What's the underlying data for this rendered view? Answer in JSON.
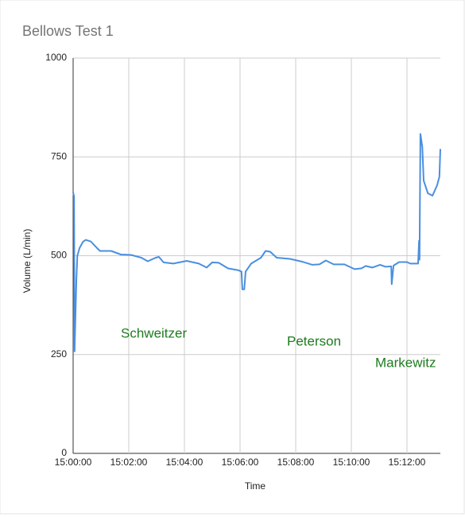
{
  "chart_data": {
    "type": "line",
    "title": "Bellows Test 1",
    "x_label": "Time",
    "y_label": "Volume (L/min)",
    "xlim": [
      "15:00:00",
      "15:13:12"
    ],
    "xticks": [
      "15:00:00",
      "15:02:00",
      "15:04:00",
      "15:06:00",
      "15:08:00",
      "15:10:00",
      "15:12:00"
    ],
    "ylim": [
      0,
      1000
    ],
    "yticks": [
      0,
      250,
      500,
      750,
      1000
    ],
    "grid": true,
    "annotations": [
      "Schweitzer",
      "Peterson",
      "Markewitz"
    ],
    "x": [
      "15:00:00",
      "15:00:02",
      "15:00:03",
      "15:00:07",
      "15:00:09",
      "15:00:14",
      "15:00:21",
      "15:00:27",
      "15:00:38",
      "15:00:51",
      "15:00:58",
      "15:01:22",
      "15:01:43",
      "15:02:05",
      "15:02:27",
      "15:02:41",
      "15:02:58",
      "15:03:05",
      "15:03:15",
      "15:03:36",
      "15:04:05",
      "15:04:31",
      "15:04:48",
      "15:05:00",
      "15:05:14",
      "15:05:34",
      "15:05:57",
      "15:06:03",
      "15:06:05",
      "15:06:09",
      "15:06:12",
      "15:06:24",
      "15:06:45",
      "15:06:55",
      "15:07:05",
      "15:07:19",
      "15:07:48",
      "15:08:14",
      "15:08:36",
      "15:08:51",
      "15:09:05",
      "15:09:22",
      "15:09:45",
      "15:10:07",
      "15:10:22",
      "15:10:31",
      "15:10:45",
      "15:11:02",
      "15:11:14",
      "15:11:26",
      "15:11:27",
      "15:11:31",
      "15:11:43",
      "15:12:00",
      "15:12:07",
      "15:12:24",
      "15:12:26",
      "15:12:27",
      "15:12:29",
      "15:12:33",
      "15:12:36",
      "15:12:45",
      "15:12:55",
      "15:13:05",
      "15:13:10",
      "15:13:12"
    ],
    "series": [
      {
        "name": "Volume",
        "color": "#4a8fe0",
        "values": [
          660,
          650,
          258,
          440,
          500,
          520,
          535,
          540,
          536,
          520,
          512,
          512,
          503,
          502,
          495,
          486,
          495,
          497,
          483,
          480,
          487,
          480,
          470,
          483,
          482,
          468,
          463,
          460,
          415,
          415,
          460,
          480,
          495,
          512,
          510,
          495,
          492,
          485,
          477,
          478,
          488,
          478,
          478,
          466,
          468,
          474,
          470,
          477,
          472,
          473,
          428,
          475,
          484,
          484,
          480,
          480,
          538,
          490,
          808,
          775,
          690,
          658,
          652,
          678,
          700,
          770
        ]
      }
    ]
  }
}
